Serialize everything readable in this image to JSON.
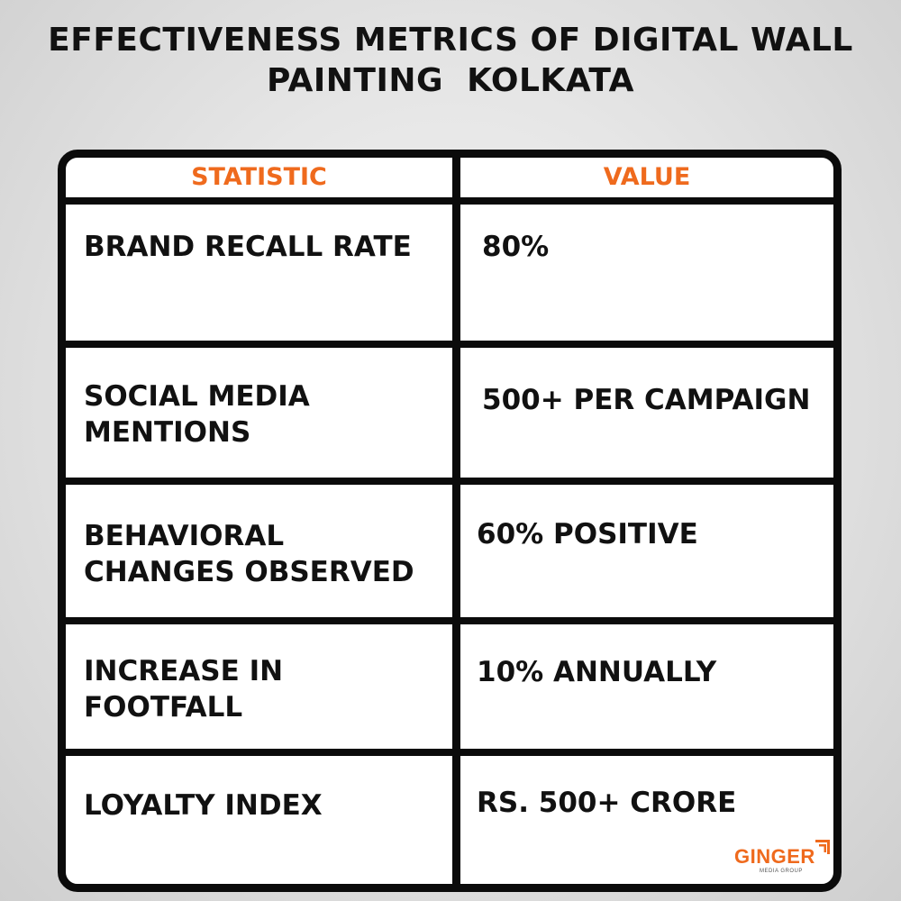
{
  "title": {
    "line1": "EFFECTIVENESS METRICS OF DIGITAL WALL",
    "line2": "PAINTING  KOLKATA"
  },
  "table": {
    "headers": {
      "statistic": "STATISTIC",
      "value": "VALUE"
    },
    "rows": [
      {
        "stat_lines": [
          "BRAND RECALL RATE"
        ],
        "value": "80%"
      },
      {
        "stat_lines": [
          "SOCIAL MEDIA",
          "MENTIONS"
        ],
        "value": "500+ PER CAMPAIGN"
      },
      {
        "stat_lines": [
          "BEHAVIORAL",
          "CHANGES OBSERVED"
        ],
        "value": "60% POSITIVE"
      },
      {
        "stat_lines": [
          "INCREASE IN",
          "FOOTFALL"
        ],
        "value": "10% ANNUALLY"
      },
      {
        "stat_lines": [
          "LOYALTY INDEX"
        ],
        "value": "RS. 500+ CRORE"
      }
    ]
  },
  "logo": {
    "name": "GINGER",
    "tagline": "MEDIA GROUP",
    "icon": "bars-icon"
  },
  "colors": {
    "accent": "#ef6a1d",
    "text": "#111111",
    "border": "#0b0b0b",
    "cell_background": "#ffffff"
  }
}
